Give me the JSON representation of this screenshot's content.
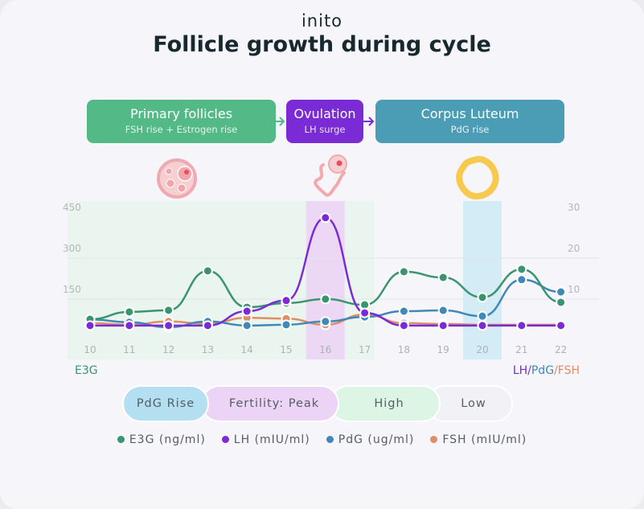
{
  "brand": "inito",
  "title": "Follicle growth during cycle",
  "phases": [
    {
      "label": "Primary follicles",
      "sub": "FSH rise + Estrogen rise",
      "color": "#52b987"
    },
    {
      "label": "Ovulation",
      "sub": "LH surge",
      "color": "#7b2bd6"
    },
    {
      "label": "Corpus Luteum",
      "sub": "PdG rise",
      "color": "#4a9db5"
    }
  ],
  "fertility_pills": [
    {
      "label": "PdG Rise",
      "color": "#b4dff0"
    },
    {
      "label": "Fertility: Peak",
      "color": "#ecd4f6"
    },
    {
      "label": "High",
      "color": "#dcf5e4"
    },
    {
      "label": "Low",
      "color": "#f2f2f6"
    }
  ],
  "chart_data": {
    "type": "line",
    "title": "Follicle growth during cycle",
    "x": [
      10,
      11,
      12,
      13,
      14,
      15,
      16,
      17,
      18,
      19,
      20,
      21,
      22
    ],
    "left_axis": {
      "label": "E3G",
      "ticks": [
        150,
        300,
        450
      ],
      "range": [
        0,
        450
      ]
    },
    "right_axis": {
      "label_parts": [
        {
          "text": "LH",
          "color": "#7b2bd6"
        },
        {
          "text": "/",
          "color": "#7b2bd6"
        },
        {
          "text": "PdG",
          "color": "#3f88b8"
        },
        {
          "text": "/",
          "color": "#e08d63"
        },
        {
          "text": "FSH",
          "color": "#e08d63"
        }
      ],
      "ticks": [
        10,
        20,
        30
      ],
      "range": [
        0,
        30
      ]
    },
    "highlight_days": {
      "ovulation": 16,
      "pdg_rise": 20
    },
    "series": [
      {
        "name": "E3G (ng/ml)",
        "axis": "left",
        "color": "#3a9470",
        "values": [
          41,
          68,
          74,
          218,
          85,
          100,
          115,
          94,
          215,
          194,
          121,
          224,
          103
        ]
      },
      {
        "name": "LH (mIU/ml)",
        "axis": "right",
        "color": "#7b2bd6",
        "values": [
          1.2,
          1.2,
          1.2,
          1.2,
          4.7,
          7.3,
          27.5,
          4.3,
          1.2,
          1.2,
          1.2,
          1.2,
          1.2
        ]
      },
      {
        "name": "PdG (ug/ml)",
        "axis": "right",
        "color": "#3f88b8",
        "values": [
          2.7,
          2.0,
          0.8,
          2.2,
          1.2,
          1.4,
          2.2,
          3.3,
          4.7,
          4.9,
          3.5,
          12.4,
          9.4
        ]
      },
      {
        "name": "FSH (mIU/ml)",
        "axis": "right",
        "color": "#e08d63",
        "values": [
          1.8,
          1.4,
          2.2,
          1.6,
          3.1,
          2.9,
          1.4,
          3.9,
          1.8,
          1.6,
          1.4,
          1.4,
          1.4
        ]
      }
    ]
  }
}
